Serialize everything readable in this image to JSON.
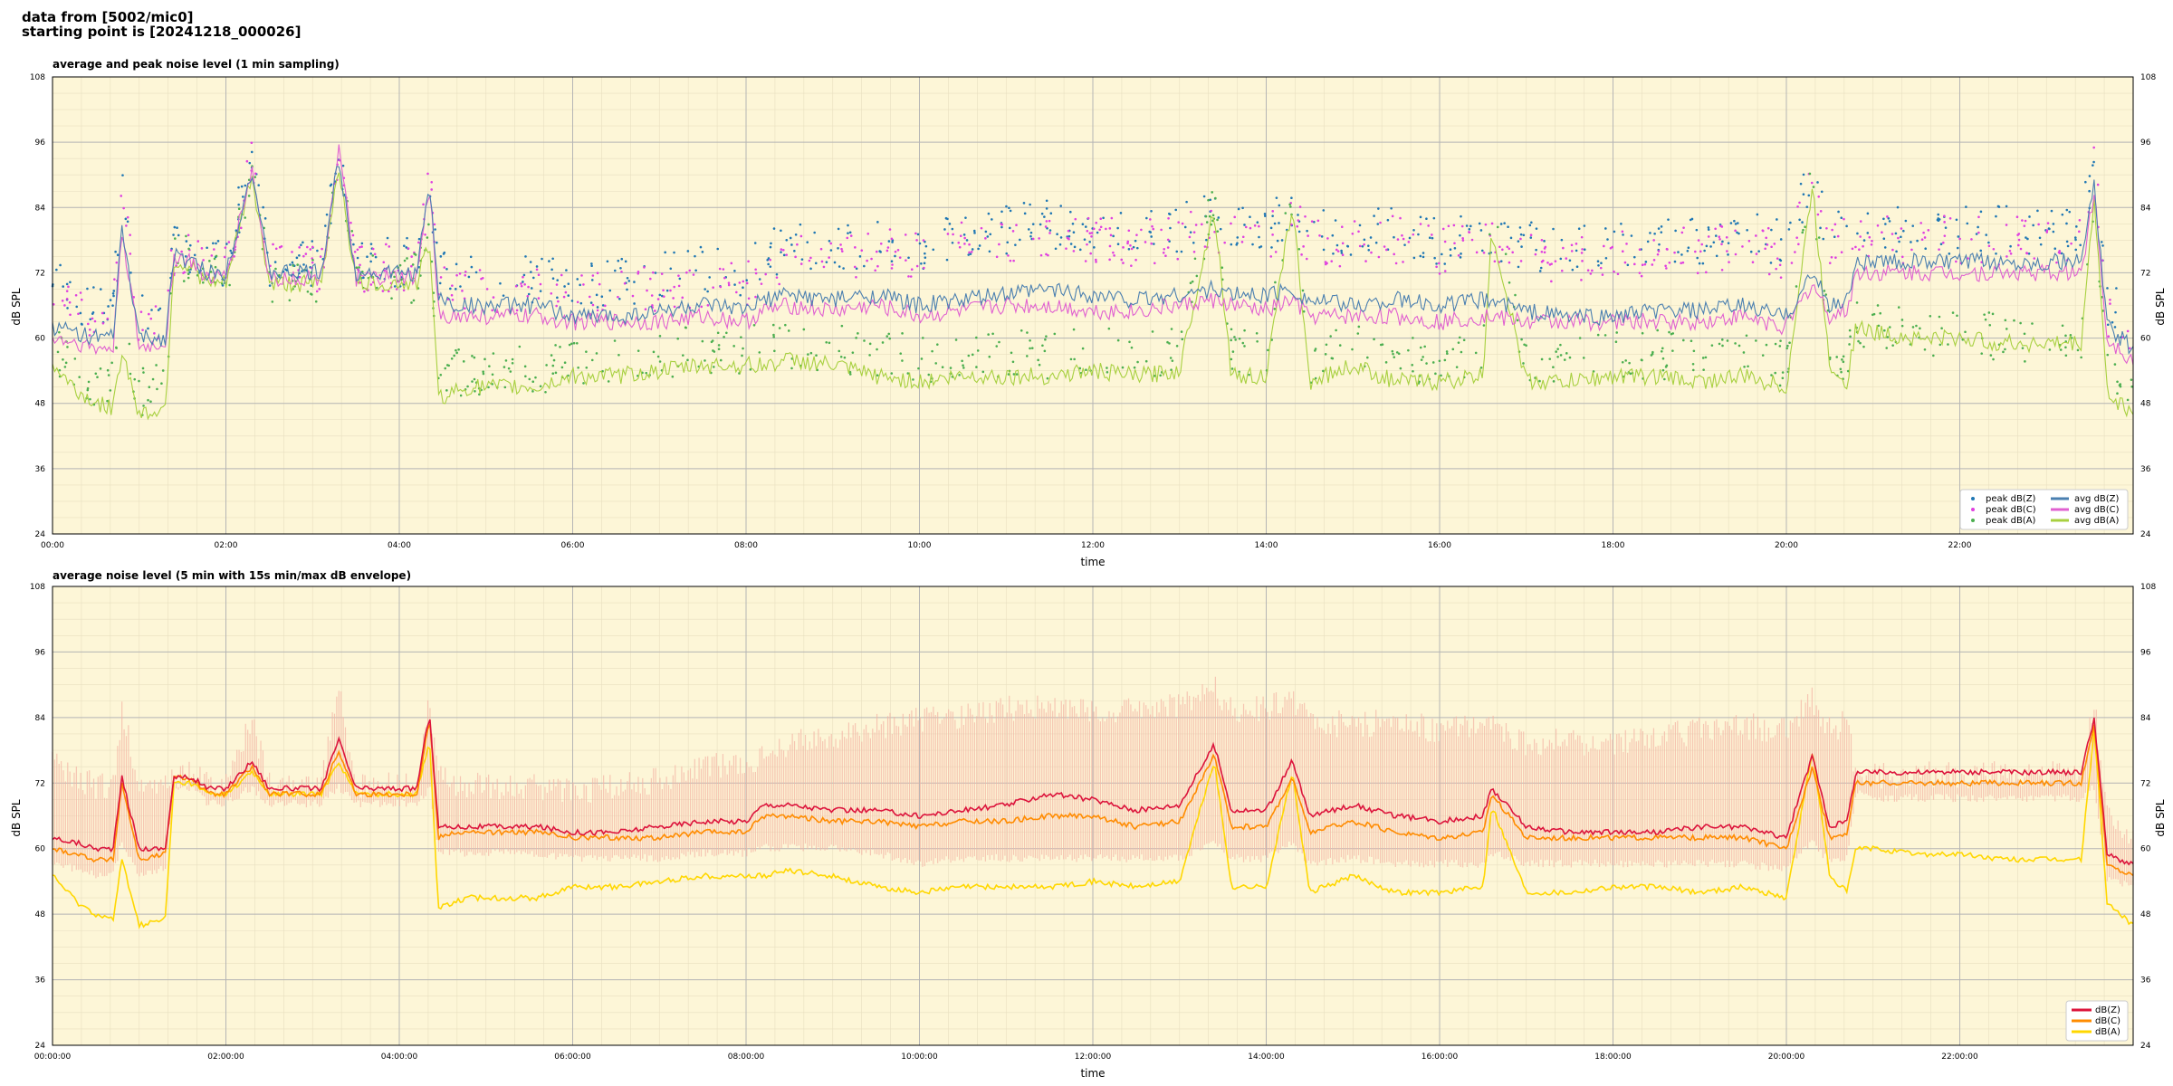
{
  "header": {
    "line1": "data from [5002/mic0]",
    "line2": "starting point is [20241218_000026]"
  },
  "colors": {
    "plot_bg": "#fdf6d7",
    "peak_z": "#1f77b4",
    "peak_c": "#e040e0",
    "peak_a": "#4caf50",
    "avg_z": "#4a7fb0",
    "avg_c": "#e060d0",
    "avg_a": "#a8d040",
    "env": "#f4b6a6",
    "db_z": "#dc143c",
    "db_c": "#ff8c00",
    "db_a": "#ffd700"
  },
  "chart_data": [
    {
      "type": "line",
      "title": "average and peak noise level (1 min sampling)",
      "xlabel": "time",
      "ylabel": "dB SPL",
      "ylim": [
        24,
        108
      ],
      "yticks": [
        "24",
        "36",
        "48",
        "60",
        "72",
        "84",
        "96",
        "108"
      ],
      "xlim_hours": [
        0,
        24
      ],
      "xticks": [
        "00:00",
        "02:00",
        "04:00",
        "06:00",
        "08:00",
        "10:00",
        "12:00",
        "14:00",
        "16:00",
        "18:00",
        "20:00",
        "22:00"
      ],
      "grid": true,
      "legend_position": "bottom-right",
      "x_hours": [
        0,
        0.3,
        0.5,
        0.7,
        0.8,
        1.0,
        1.3,
        1.4,
        1.6,
        1.8,
        2.0,
        2.3,
        2.5,
        2.8,
        3.1,
        3.3,
        3.5,
        3.8,
        4.0,
        4.2,
        4.35,
        4.45,
        4.6,
        4.8,
        5.2,
        5.6,
        6.0,
        6.5,
        7.0,
        7.5,
        8.0,
        8.2,
        8.5,
        9.0,
        9.5,
        10.0,
        10.5,
        11.0,
        11.5,
        12.0,
        12.5,
        13.0,
        13.4,
        13.6,
        14.0,
        14.3,
        14.5,
        15.0,
        15.5,
        16.0,
        16.5,
        16.6,
        17.0,
        17.5,
        18.0,
        18.5,
        19.0,
        19.5,
        20.0,
        20.3,
        20.5,
        20.7,
        20.8,
        21.0,
        21.5,
        22.0,
        22.5,
        23.0,
        23.4,
        23.55,
        23.7,
        24.0
      ],
      "series": [
        {
          "name": "avg dB(Z)",
          "style": "line",
          "values": [
            62,
            61,
            60,
            60,
            80,
            60,
            60,
            75,
            74,
            72,
            72,
            91,
            72,
            72,
            72,
            93,
            72,
            72,
            72,
            72,
            88,
            68,
            66,
            66,
            66,
            66,
            64,
            64,
            65,
            66,
            65,
            67,
            68,
            67,
            68,
            66,
            67,
            68,
            69,
            68,
            67,
            68,
            69,
            68,
            68,
            69,
            67,
            66,
            67,
            66,
            67,
            67,
            65,
            64,
            64,
            65,
            65,
            66,
            64,
            72,
            66,
            67,
            74,
            74,
            74,
            74,
            74,
            74,
            74,
            88,
            62,
            58
          ]
        },
        {
          "name": "avg dB(C)",
          "style": "line",
          "values": [
            60,
            59,
            58,
            58,
            80,
            58,
            59,
            75,
            74,
            71,
            71,
            91,
            71,
            71,
            71,
            95,
            71,
            71,
            71,
            71,
            88,
            65,
            64,
            64,
            64,
            64,
            63,
            63,
            63,
            64,
            63,
            65,
            66,
            65,
            66,
            64,
            65,
            66,
            66,
            65,
            65,
            66,
            67,
            66,
            65,
            67,
            64,
            64,
            64,
            63,
            64,
            64,
            63,
            63,
            63,
            63,
            63,
            64,
            62,
            70,
            64,
            65,
            72,
            72,
            72,
            72,
            72,
            72,
            72,
            87,
            60,
            56
          ]
        },
        {
          "name": "avg dB(A)",
          "style": "line",
          "values": [
            55,
            50,
            48,
            47,
            58,
            46,
            47,
            74,
            73,
            70,
            70,
            90,
            70,
            70,
            70,
            92,
            70,
            70,
            70,
            70,
            78,
            49,
            50,
            51,
            51,
            51,
            53,
            53,
            54,
            55,
            55,
            55,
            56,
            55,
            53,
            52,
            53,
            53,
            53,
            54,
            53,
            54,
            84,
            53,
            53,
            85,
            52,
            55,
            52,
            52,
            53,
            80,
            52,
            52,
            53,
            53,
            52,
            53,
            51,
            88,
            55,
            52,
            62,
            61,
            60,
            60,
            59,
            59,
            59,
            86,
            50,
            46
          ]
        },
        {
          "name": "peak dB(Z)",
          "style": "dots",
          "values": [
            70,
            67,
            66,
            66,
            88,
            65,
            67,
            77,
            76,
            74,
            74,
            93,
            74,
            74,
            74,
            95,
            74,
            74,
            74,
            74,
            90,
            72,
            71,
            71,
            71,
            71,
            70,
            70,
            71,
            73,
            72,
            75,
            77,
            76,
            78,
            77,
            79,
            80,
            81,
            80,
            79,
            80,
            83,
            80,
            80,
            84,
            80,
            79,
            80,
            78,
            79,
            79,
            77,
            76,
            77,
            78,
            78,
            79,
            77,
            90,
            78,
            80,
            80,
            80,
            80,
            80,
            80,
            80,
            80,
            93,
            67,
            62
          ]
        },
        {
          "name": "peak dB(C)",
          "style": "dots",
          "values": [
            68,
            65,
            64,
            64,
            86,
            63,
            65,
            76,
            75,
            73,
            73,
            92,
            73,
            73,
            73,
            94,
            73,
            73,
            73,
            73,
            89,
            70,
            69,
            69,
            69,
            69,
            68,
            68,
            69,
            70,
            70,
            73,
            75,
            74,
            76,
            75,
            77,
            78,
            79,
            78,
            77,
            78,
            81,
            78,
            78,
            82,
            78,
            77,
            78,
            76,
            77,
            77,
            75,
            74,
            75,
            76,
            76,
            77,
            75,
            89,
            76,
            78,
            78,
            78,
            78,
            78,
            78,
            78,
            78,
            92,
            65,
            60
          ]
        },
        {
          "name": "peak dB(A)",
          "style": "dots",
          "values": [
            58,
            54,
            52,
            51,
            62,
            50,
            51,
            75,
            74,
            71,
            71,
            91,
            71,
            71,
            71,
            93,
            71,
            71,
            71,
            71,
            82,
            52,
            53,
            54,
            54,
            54,
            56,
            56,
            57,
            58,
            58,
            58,
            59,
            58,
            57,
            56,
            57,
            57,
            57,
            58,
            57,
            58,
            86,
            57,
            57,
            87,
            56,
            59,
            56,
            56,
            57,
            82,
            56,
            56,
            57,
            57,
            56,
            57,
            55,
            90,
            58,
            55,
            63,
            62,
            61,
            61,
            60,
            60,
            60,
            88,
            53,
            49
          ]
        }
      ]
    },
    {
      "type": "line",
      "title": "average noise level (5 min with 15s min/max dB envelope)",
      "xlabel": "time",
      "ylabel": "dB SPL",
      "ylim": [
        24,
        108
      ],
      "yticks": [
        "24",
        "36",
        "48",
        "60",
        "72",
        "84",
        "96",
        "108"
      ],
      "xlim_hours": [
        0,
        24
      ],
      "xticks": [
        "00:00:00",
        "02:00:00",
        "04:00:00",
        "06:00:00",
        "08:00:00",
        "10:00:00",
        "12:00:00",
        "14:00:00",
        "16:00:00",
        "18:00:00",
        "20:00:00",
        "22:00:00"
      ],
      "grid": true,
      "legend_position": "bottom-right",
      "x_hours": [
        0,
        0.3,
        0.5,
        0.7,
        0.8,
        1.0,
        1.3,
        1.4,
        1.6,
        1.8,
        2.0,
        2.3,
        2.5,
        2.8,
        3.1,
        3.3,
        3.5,
        3.8,
        4.0,
        4.2,
        4.35,
        4.45,
        4.6,
        4.8,
        5.2,
        5.6,
        6.0,
        6.5,
        7.0,
        7.5,
        8.0,
        8.2,
        8.5,
        9.0,
        9.5,
        10.0,
        10.5,
        11.0,
        11.5,
        12.0,
        12.5,
        13.0,
        13.4,
        13.6,
        14.0,
        14.3,
        14.5,
        15.0,
        15.5,
        16.0,
        16.5,
        16.6,
        17.0,
        17.5,
        18.0,
        18.5,
        19.0,
        19.5,
        20.0,
        20.3,
        20.5,
        20.7,
        20.8,
        21.0,
        21.5,
        22.0,
        22.5,
        23.0,
        23.4,
        23.55,
        23.7,
        24.0
      ],
      "envelope": {
        "min": [
          58,
          57,
          56,
          56,
          62,
          56,
          57,
          72,
          72,
          69,
          69,
          72,
          69,
          69,
          69,
          72,
          69,
          69,
          69,
          69,
          72,
          60,
          60,
          60,
          60,
          60,
          59,
          59,
          59,
          60,
          60,
          61,
          61,
          61,
          60,
          58,
          59,
          59,
          59,
          59,
          59,
          59,
          62,
          59,
          59,
          62,
          58,
          59,
          58,
          58,
          58,
          60,
          58,
          58,
          58,
          58,
          58,
          58,
          57,
          62,
          58,
          59,
          71,
          70,
          70,
          70,
          70,
          70,
          70,
          72,
          55,
          54
        ],
        "max": [
          78,
          75,
          74,
          74,
          88,
          74,
          74,
          76,
          76,
          74,
          74,
          86,
          74,
          74,
          74,
          92,
          74,
          74,
          74,
          74,
          90,
          76,
          74,
          74,
          74,
          74,
          73,
          74,
          75,
          78,
          77,
          80,
          82,
          82,
          85,
          86,
          87,
          88,
          89,
          88,
          88,
          89,
          92,
          88,
          88,
          90,
          86,
          85,
          86,
          84,
          85,
          85,
          82,
          82,
          82,
          83,
          84,
          85,
          84,
          90,
          84,
          86,
          76,
          76,
          76,
          76,
          76,
          76,
          76,
          90,
          68,
          64
        ]
      },
      "series": [
        {
          "name": "dB(Z)",
          "values": [
            62,
            61,
            60,
            60,
            73,
            60,
            60,
            73,
            73,
            71,
            71,
            76,
            71,
            71,
            71,
            80,
            71,
            71,
            71,
            71,
            85,
            64,
            64,
            64,
            64,
            64,
            63,
            63,
            64,
            65,
            65,
            68,
            68,
            67,
            67,
            66,
            67,
            68,
            70,
            69,
            67,
            68,
            79,
            67,
            67,
            76,
            66,
            68,
            66,
            65,
            66,
            71,
            64,
            63,
            63,
            63,
            64,
            64,
            62,
            77,
            64,
            65,
            74,
            74,
            74,
            74,
            74,
            74,
            74,
            84,
            59,
            57
          ]
        },
        {
          "name": "dB(C)",
          "values": [
            60,
            59,
            58,
            58,
            72,
            58,
            59,
            73,
            73,
            70,
            70,
            75,
            70,
            70,
            70,
            78,
            70,
            70,
            70,
            70,
            84,
            62,
            63,
            63,
            63,
            63,
            62,
            62,
            62,
            63,
            63,
            66,
            66,
            65,
            65,
            64,
            65,
            65,
            66,
            66,
            64,
            65,
            77,
            64,
            64,
            73,
            63,
            65,
            63,
            62,
            63,
            70,
            62,
            62,
            62,
            62,
            62,
            62,
            60,
            75,
            62,
            63,
            72,
            72,
            72,
            72,
            72,
            72,
            72,
            83,
            57,
            55
          ]
        },
        {
          "name": "dB(A)",
          "values": [
            55,
            50,
            48,
            47,
            58,
            46,
            47,
            72,
            72,
            70,
            70,
            74,
            70,
            70,
            70,
            76,
            70,
            70,
            70,
            70,
            80,
            49,
            50,
            51,
            51,
            51,
            53,
            53,
            54,
            55,
            55,
            55,
            56,
            55,
            53,
            52,
            53,
            53,
            53,
            54,
            53,
            54,
            76,
            53,
            53,
            74,
            52,
            55,
            52,
            52,
            53,
            68,
            52,
            52,
            53,
            53,
            52,
            53,
            51,
            78,
            55,
            52,
            60,
            60,
            59,
            59,
            58,
            58,
            58,
            82,
            50,
            46
          ]
        }
      ]
    }
  ]
}
